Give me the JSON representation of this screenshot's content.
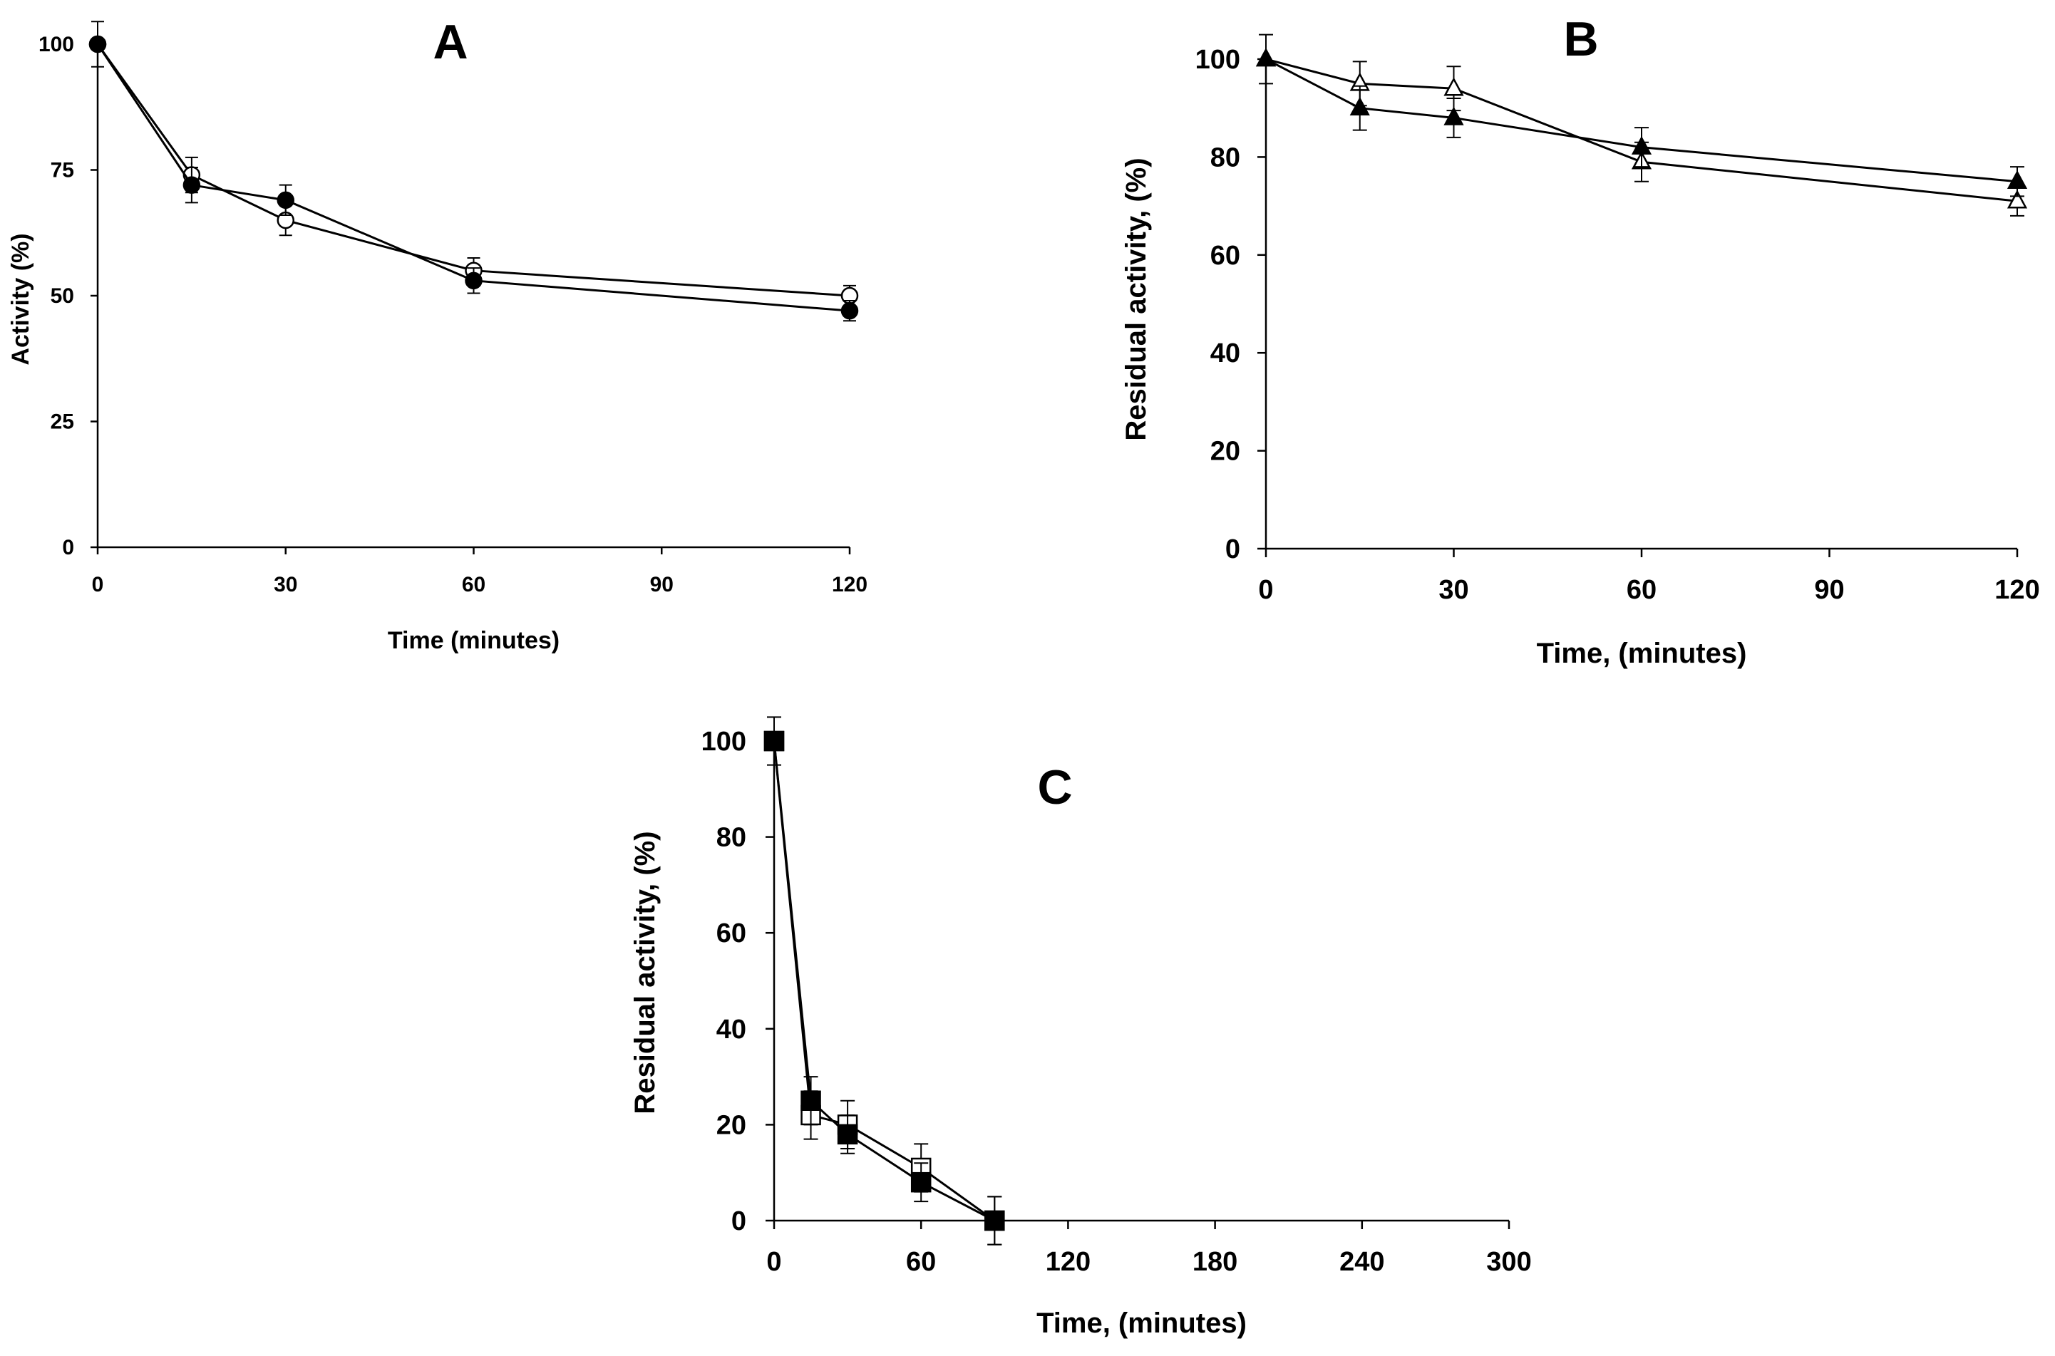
{
  "chart_data": [
    {
      "panel": "A",
      "type": "line",
      "xlabel": "Time (minutes)",
      "ylabel": "Activity (%)",
      "xlim": [
        0,
        120
      ],
      "ylim": [
        0,
        105
      ],
      "xticks": [
        0,
        30,
        60,
        90,
        120
      ],
      "yticks": [
        0,
        25,
        50,
        75,
        100
      ],
      "grid": false,
      "series": [
        {
          "marker": "circle-open",
          "x": [
            0,
            15,
            30,
            60,
            120
          ],
          "y": [
            100,
            74,
            65,
            55,
            50
          ],
          "err": [
            4.5,
            3.5,
            3,
            2.5,
            2
          ]
        },
        {
          "marker": "circle-filled",
          "x": [
            0,
            15,
            30,
            60,
            120
          ],
          "y": [
            100,
            72,
            69,
            53,
            47
          ],
          "err": [
            0,
            3.5,
            3,
            2.5,
            2
          ]
        }
      ]
    },
    {
      "panel": "B",
      "type": "line",
      "xlabel": "Time, (minutes)",
      "ylabel": "Residual activity, (%)",
      "xlim": [
        0,
        120
      ],
      "ylim": [
        0,
        110
      ],
      "xticks": [
        0,
        30,
        60,
        90,
        120
      ],
      "yticks": [
        0,
        20,
        40,
        60,
        80,
        100
      ],
      "grid": false,
      "series": [
        {
          "marker": "triangle-open",
          "x": [
            0,
            15,
            30,
            60,
            120
          ],
          "y": [
            100,
            95,
            94,
            79,
            71
          ],
          "err": [
            5,
            4.5,
            4.5,
            4,
            3
          ]
        },
        {
          "marker": "triangle-filled",
          "x": [
            0,
            15,
            30,
            60,
            120
          ],
          "y": [
            100,
            90,
            88,
            82,
            75
          ],
          "err": [
            0,
            4.5,
            4,
            4,
            3
          ]
        }
      ]
    },
    {
      "panel": "C",
      "type": "line",
      "xlabel": "Time, (minutes)",
      "ylabel": "Residual activity, (%)",
      "xlim": [
        0,
        300
      ],
      "ylim": [
        0,
        110
      ],
      "xticks": [
        0,
        60,
        120,
        180,
        240,
        300
      ],
      "yticks": [
        0,
        20,
        40,
        60,
        80,
        100
      ],
      "grid": false,
      "series": [
        {
          "marker": "square-open",
          "x": [
            0,
            15,
            30,
            60,
            90
          ],
          "y": [
            100,
            22,
            20,
            11,
            0
          ],
          "err": [
            5,
            5,
            5,
            5,
            5
          ]
        },
        {
          "marker": "square-filled",
          "x": [
            0,
            15,
            30,
            60,
            90
          ],
          "y": [
            100,
            25,
            18,
            8,
            0
          ],
          "err": [
            0,
            5,
            4,
            4,
            5
          ]
        }
      ]
    }
  ]
}
